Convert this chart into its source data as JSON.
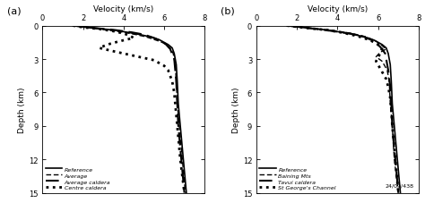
{
  "panel_a": {
    "title": "Velocity (km/s)",
    "ylabel": "Depth (km)",
    "xlim": [
      0,
      8
    ],
    "ylim": [
      15,
      0
    ],
    "xticks": [
      0,
      2,
      4,
      6,
      8
    ],
    "yticks": [
      0,
      3,
      6,
      9,
      12,
      15
    ],
    "label": "(a)",
    "curves": {
      "reference": {
        "v": [
          1.5,
          2.5,
          3.5,
          4.2,
          4.8,
          5.3,
          5.8,
          6.0,
          6.2,
          6.4,
          6.5,
          6.6,
          6.65,
          6.7,
          6.8,
          6.9,
          7.0,
          7.1
        ],
        "d": [
          0.0,
          0.2,
          0.4,
          0.6,
          0.8,
          1.0,
          1.3,
          1.5,
          1.7,
          2.0,
          2.5,
          3.5,
          5.0,
          7.0,
          9.0,
          11.0,
          13.0,
          15.0
        ],
        "lw": 1.2,
        "ls": "solid",
        "dashes": null,
        "label": "Reference",
        "zorder": 5
      },
      "average": {
        "v": [
          1.5,
          2.3,
          3.2,
          4.0,
          4.6,
          5.1,
          5.6,
          5.9,
          6.1,
          6.3,
          6.45,
          6.55,
          6.6,
          6.65,
          6.75,
          6.85,
          6.95,
          7.05
        ],
        "d": [
          0.0,
          0.2,
          0.4,
          0.6,
          0.8,
          1.0,
          1.3,
          1.5,
          1.7,
          2.0,
          2.5,
          3.5,
          5.0,
          7.0,
          9.0,
          11.0,
          13.0,
          15.0
        ],
        "lw": 1.0,
        "ls": "dashed",
        "dashes": [
          4,
          2
        ],
        "label": "Average",
        "zorder": 4
      },
      "average_caldera": {
        "v": [
          1.5,
          2.5,
          3.6,
          4.4,
          5.0,
          5.5,
          5.9,
          6.1,
          6.3,
          6.5,
          6.6,
          6.65,
          6.7,
          6.8,
          6.9,
          7.0
        ],
        "d": [
          0.0,
          0.2,
          0.4,
          0.6,
          0.8,
          1.1,
          1.4,
          1.7,
          2.1,
          3.0,
          5.0,
          7.0,
          9.0,
          11.0,
          13.0,
          15.0
        ],
        "lw": 1.5,
        "ls": "dashed",
        "dashes": [
          7,
          3
        ],
        "label": "Average caldera",
        "zorder": 3
      },
      "centre_caldera": {
        "v": [
          1.5,
          2.0,
          2.8,
          3.5,
          4.0,
          4.3,
          4.5,
          3.8,
          3.2,
          2.8,
          3.5,
          4.5,
          5.5,
          6.0,
          6.2,
          6.4,
          6.5,
          6.55,
          6.6,
          6.65,
          6.7,
          6.8,
          6.9,
          7.0
        ],
        "d": [
          0.0,
          0.15,
          0.3,
          0.5,
          0.7,
          0.9,
          1.1,
          1.4,
          1.7,
          2.0,
          2.3,
          2.7,
          3.1,
          3.6,
          4.0,
          5.0,
          6.0,
          7.0,
          8.0,
          9.0,
          10.0,
          12.0,
          13.5,
          15.0
        ],
        "lw": 2.0,
        "ls": "dotted",
        "dashes": null,
        "label": "Centre caldera",
        "zorder": 2
      }
    }
  },
  "panel_b": {
    "title": "Velocity (km/s)",
    "ylabel": "Depth (km)",
    "xlim": [
      0,
      8
    ],
    "ylim": [
      15,
      0
    ],
    "xticks": [
      0,
      2,
      4,
      6,
      8
    ],
    "yticks": [
      0,
      3,
      6,
      9,
      12,
      15
    ],
    "label": "(b)",
    "annotation": "24/09/438",
    "curves": {
      "reference": {
        "v": [
          1.5,
          2.5,
          3.5,
          4.2,
          4.8,
          5.3,
          5.8,
          6.0,
          6.2,
          6.4,
          6.5,
          6.6,
          6.65,
          6.7,
          6.8,
          6.9,
          7.0,
          7.1
        ],
        "d": [
          0.0,
          0.2,
          0.4,
          0.6,
          0.8,
          1.0,
          1.3,
          1.5,
          1.7,
          2.0,
          2.5,
          3.5,
          5.0,
          7.0,
          9.0,
          11.0,
          13.0,
          15.0
        ],
        "lw": 1.2,
        "ls": "solid",
        "dashes": null,
        "label": "Reference",
        "zorder": 5
      },
      "baining": {
        "v": [
          1.5,
          2.5,
          3.8,
          4.7,
          5.4,
          5.9,
          6.2,
          6.4,
          6.1,
          5.9,
          6.2,
          6.45,
          6.55,
          6.6,
          6.7,
          6.8,
          7.0
        ],
        "d": [
          0.0,
          0.2,
          0.45,
          0.7,
          1.0,
          1.4,
          1.8,
          2.1,
          2.4,
          2.8,
          3.2,
          4.0,
          5.0,
          7.0,
          9.0,
          12.0,
          15.0
        ],
        "lw": 1.0,
        "ls": "dashed",
        "dashes": [
          4,
          2
        ],
        "label": "Baining Mts",
        "zorder": 4
      },
      "tavui": {
        "v": [
          1.5,
          2.5,
          3.6,
          4.6,
          5.3,
          5.8,
          6.1,
          6.35,
          6.5,
          6.6,
          6.65,
          6.7,
          6.8,
          6.9,
          7.0
        ],
        "d": [
          0.0,
          0.2,
          0.45,
          0.7,
          1.0,
          1.4,
          1.9,
          2.5,
          4.0,
          5.5,
          7.0,
          9.0,
          11.0,
          13.0,
          15.0
        ],
        "lw": 1.5,
        "ls": "dashed",
        "dashes": [
          7,
          3
        ],
        "label": "Tavui caldera",
        "zorder": 3
      },
      "stgeorge": {
        "v": [
          1.5,
          2.4,
          3.5,
          4.3,
          5.0,
          5.6,
          6.0,
          6.2,
          6.1,
          5.9,
          6.15,
          6.4,
          6.5,
          6.6,
          6.65,
          6.7,
          6.8,
          6.9,
          7.0
        ],
        "d": [
          0.0,
          0.2,
          0.4,
          0.65,
          0.95,
          1.3,
          1.7,
          2.1,
          2.5,
          3.2,
          4.0,
          4.8,
          5.5,
          6.5,
          7.5,
          9.0,
          11.0,
          13.0,
          15.0
        ],
        "lw": 2.0,
        "ls": "dotted",
        "dashes": null,
        "label": "St George's Channel",
        "zorder": 2
      }
    }
  },
  "legend_order_a": [
    "reference",
    "average",
    "average_caldera",
    "centre_caldera"
  ],
  "legend_order_b": [
    "reference",
    "baining",
    "tavui",
    "stgeorge"
  ]
}
